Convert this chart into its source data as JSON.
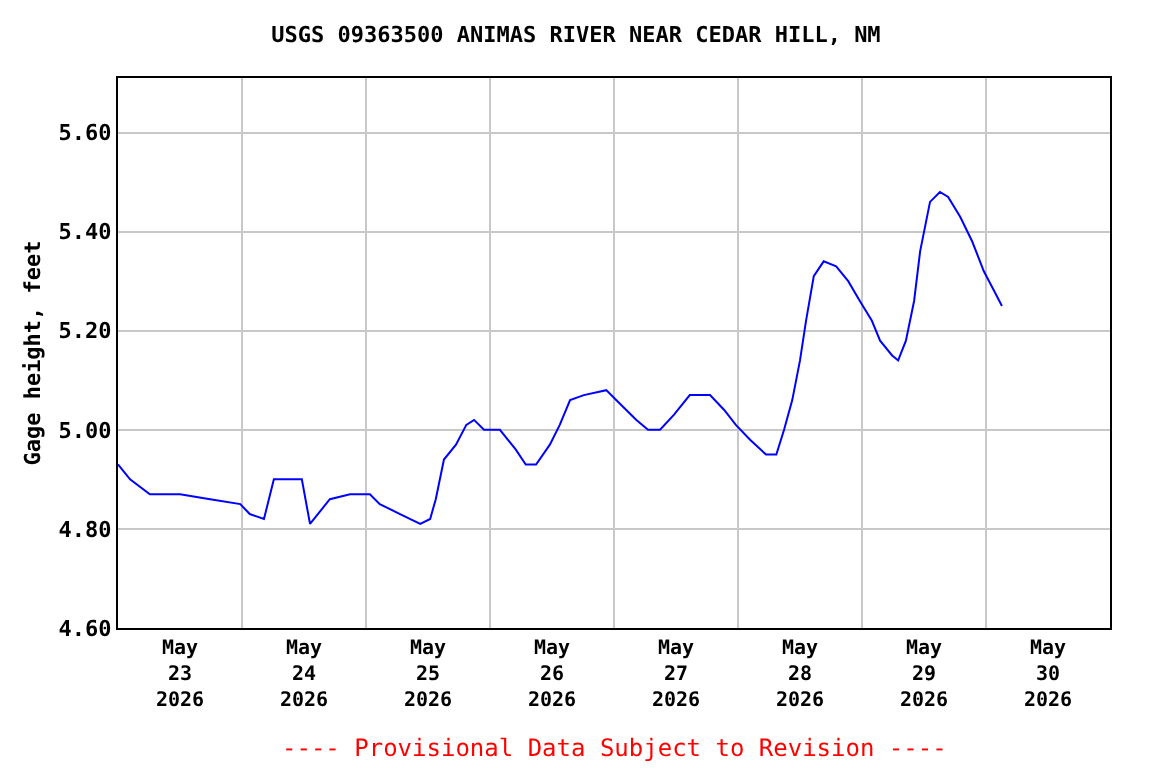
{
  "chart_data": {
    "type": "line",
    "title": "USGS 09363500 ANIMAS RIVER NEAR CEDAR HILL, NM",
    "ylabel": "Gage height, feet",
    "annotations": [
      "---- Provisional Data Subject to Revision ----"
    ],
    "series": [
      {
        "color": "#0000ff",
        "x": [
          "2026-05-23T00:00",
          "2026-05-23T02:20",
          "2026-05-23T06:10",
          "2026-05-23T12:00",
          "2026-05-23T17:50",
          "2026-05-23T23:40",
          "2026-05-24T01:30",
          "2026-05-24T04:15",
          "2026-05-24T06:10",
          "2026-05-24T11:35",
          "2026-05-24T13:10",
          "2026-05-24T17:00",
          "2026-05-24T20:55",
          "2026-05-25T00:45",
          "2026-05-25T02:40",
          "2026-05-25T06:35",
          "2026-05-25T10:30",
          "2026-05-25T12:25",
          "2026-05-25T13:30",
          "2026-05-25T15:05",
          "2026-05-25T17:25",
          "2026-05-25T19:25",
          "2026-05-25T20:55",
          "2026-05-25T22:50",
          "2026-05-26T01:55",
          "2026-05-26T05:00",
          "2026-05-26T06:55",
          "2026-05-26T08:55",
          "2026-05-26T11:35",
          "2026-05-26T13:30",
          "2026-05-26T15:30",
          "2026-05-26T18:10",
          "2026-05-26T22:30",
          "2026-05-27T00:25",
          "2026-05-27T04:20",
          "2026-05-27T06:35",
          "2026-05-27T08:55",
          "2026-05-27T11:35",
          "2026-05-27T14:40",
          "2026-05-27T18:35",
          "2026-05-27T21:20",
          "2026-05-27T23:35",
          "2026-05-28T02:20",
          "2026-05-28T05:25",
          "2026-05-28T07:25",
          "2026-05-28T08:55",
          "2026-05-28T10:30",
          "2026-05-28T12:00",
          "2026-05-28T13:10",
          "2026-05-28T14:40",
          "2026-05-28T16:35",
          "2026-05-28T19:00",
          "2026-05-28T21:20",
          "2026-05-28T23:35",
          "2026-05-29T01:55",
          "2026-05-29T03:30",
          "2026-05-29T05:50",
          "2026-05-29T07:00",
          "2026-05-29T08:30",
          "2026-05-29T10:05",
          "2026-05-29T11:15",
          "2026-05-29T13:10",
          "2026-05-29T15:05",
          "2026-05-29T16:40",
          "2026-05-29T19:00",
          "2026-05-29T21:20",
          "2026-05-29T23:35",
          "2026-05-30T01:35",
          "2026-05-30T03:05"
        ],
        "values": [
          4.93,
          4.9,
          4.87,
          4.87,
          4.86,
          4.85,
          4.83,
          4.82,
          4.9,
          4.9,
          4.81,
          4.86,
          4.87,
          4.87,
          4.85,
          4.83,
          4.81,
          4.82,
          4.86,
          4.94,
          4.97,
          5.01,
          5.02,
          5.0,
          5.0,
          4.96,
          4.93,
          4.93,
          4.97,
          5.01,
          5.06,
          5.07,
          5.08,
          5.06,
          5.02,
          5.0,
          5.0,
          5.03,
          5.07,
          5.07,
          5.04,
          5.01,
          4.98,
          4.95,
          4.95,
          5.0,
          5.06,
          5.14,
          5.22,
          5.31,
          5.34,
          5.33,
          5.3,
          5.26,
          5.22,
          5.18,
          5.15,
          5.14,
          5.18,
          5.26,
          5.36,
          5.46,
          5.48,
          5.47,
          5.43,
          5.38,
          5.32,
          5.28,
          5.25
        ]
      }
    ],
    "xlim": [
      "2026-05-23T00:00",
      "2026-05-31T00:00"
    ],
    "xticks": [
      {
        "value": "2026-05-24T00:00",
        "label": null
      },
      {
        "value": "2026-05-25T00:00",
        "label": null
      },
      {
        "value": "2026-05-26T00:00",
        "label": null
      },
      {
        "value": "2026-05-27T00:00",
        "label": null
      },
      {
        "value": "2026-05-28T00:00",
        "label": null
      },
      {
        "value": "2026-05-29T00:00",
        "label": null
      },
      {
        "value": "2026-05-30T00:00",
        "label": null
      },
      {
        "value": "2026-05-23T12:00",
        "label": "May\n23\n2026"
      },
      {
        "value": "2026-05-24T12:00",
        "label": "May\n24\n2026"
      },
      {
        "value": "2026-05-25T12:00",
        "label": "May\n25\n2026"
      },
      {
        "value": "2026-05-26T12:00",
        "label": "May\n26\n2026"
      },
      {
        "value": "2026-05-27T12:00",
        "label": "May\n27\n2026"
      },
      {
        "value": "2026-05-28T12:00",
        "label": "May\n28\n2026"
      },
      {
        "value": "2026-05-29T12:00",
        "label": "May\n29\n2026"
      },
      {
        "value": "2026-05-30T12:00",
        "label": "May\n30\n2026"
      }
    ],
    "ylim": [
      4.6,
      5.71
    ],
    "yticks": [
      {
        "value": 4.6,
        "label": "4.60"
      },
      {
        "value": 4.8,
        "label": "4.80"
      },
      {
        "value": 5.0,
        "label": "5.00"
      },
      {
        "value": 5.2,
        "label": "5.20"
      },
      {
        "value": 5.4,
        "label": "5.40"
      },
      {
        "value": 5.6,
        "label": "5.60"
      }
    ],
    "grid": true,
    "line_style": "solid"
  }
}
